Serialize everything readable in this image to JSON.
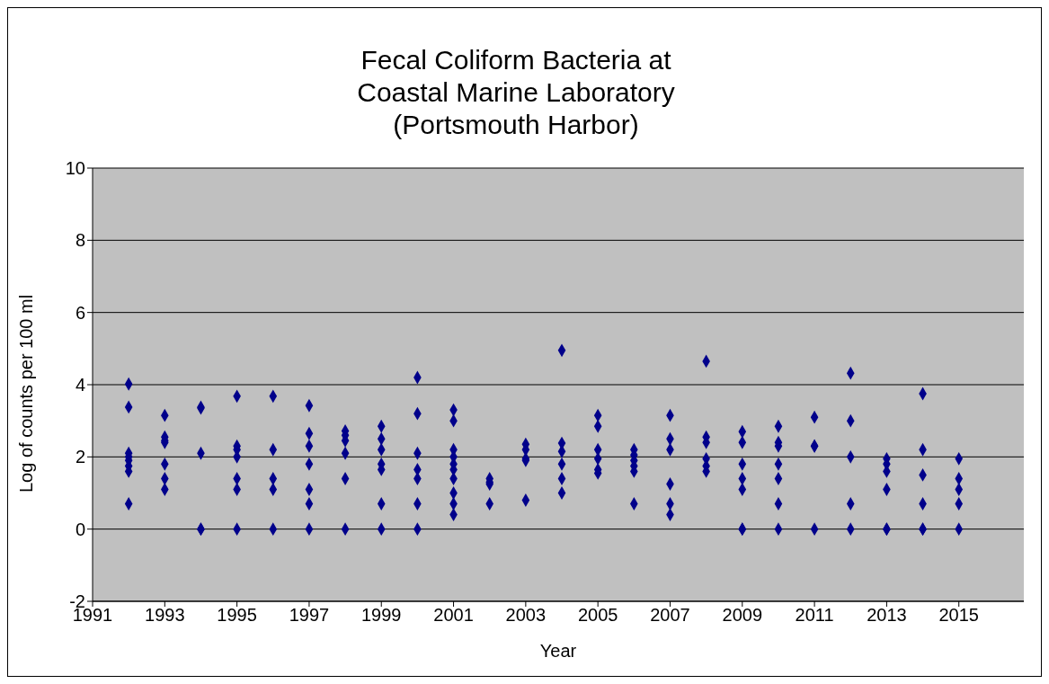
{
  "chart_data": {
    "type": "scatter",
    "title": "Fecal Coliform Bacteria at\nCoastal Marine Laboratory\n(Portsmouth Harbor)",
    "xlabel": "Year",
    "ylabel": "Log of counts per 100 ml",
    "xlim": [
      1991,
      2016.8
    ],
    "xticks": [
      1991,
      1993,
      1995,
      1997,
      1999,
      2001,
      2003,
      2005,
      2007,
      2009,
      2011,
      2013,
      2015
    ],
    "ylim": [
      -2,
      10
    ],
    "yticks": [
      -2,
      0,
      2,
      4,
      6,
      8,
      10
    ],
    "grid": "y",
    "legend": false,
    "marker": "diamond",
    "series": [
      {
        "color": "#00008b",
        "x": [
          1992,
          1992,
          1992,
          1992,
          1992,
          1992,
          1992,
          1992,
          1993,
          1993,
          1993,
          1993,
          1993,
          1993,
          1993,
          1994,
          1994,
          1994,
          1994,
          1994,
          1995,
          1995,
          1995,
          1995,
          1995,
          1995,
          1995,
          1996,
          1996,
          1996,
          1996,
          1996,
          1997,
          1997,
          1997,
          1997,
          1997,
          1997,
          1997,
          1998,
          1998,
          1998,
          1998,
          1998,
          1998,
          1999,
          1999,
          1999,
          1999,
          1999,
          1999,
          1999,
          2000,
          2000,
          2000,
          2000,
          2000,
          2000,
          2000,
          2001,
          2001,
          2001,
          2001,
          2001,
          2001,
          2001,
          2001,
          2001,
          2001,
          2002,
          2002,
          2002,
          2002,
          2003,
          2003,
          2003,
          2003,
          2003,
          2004,
          2004,
          2004,
          2004,
          2004,
          2004,
          2005,
          2005,
          2005,
          2005,
          2005,
          2005,
          2006,
          2006,
          2006,
          2006,
          2006,
          2006,
          2007,
          2007,
          2007,
          2007,
          2007,
          2007,
          2008,
          2008,
          2008,
          2008,
          2008,
          2008,
          2009,
          2009,
          2009,
          2009,
          2009,
          2009,
          2009,
          2010,
          2010,
          2010,
          2010,
          2010,
          2010,
          2010,
          2011,
          2011,
          2011,
          2011,
          2012,
          2012,
          2012,
          2012,
          2012,
          2013,
          2013,
          2013,
          2013,
          2013,
          2013,
          2014,
          2014,
          2014,
          2014,
          2014,
          2014,
          2015,
          2015,
          2015,
          2015,
          2015
        ],
        "values": [
          4.02,
          3.38,
          2.1,
          2.0,
          1.9,
          1.75,
          1.6,
          0.7,
          3.15,
          2.55,
          2.45,
          2.4,
          1.8,
          1.4,
          1.1,
          3.38,
          3.35,
          2.1,
          0,
          0,
          3.68,
          2.3,
          2.2,
          2.0,
          1.4,
          1.1,
          0,
          3.68,
          2.2,
          1.4,
          1.1,
          0,
          3.42,
          2.65,
          2.3,
          1.8,
          1.1,
          0.7,
          0,
          2.72,
          2.6,
          2.45,
          2.1,
          1.4,
          0,
          2.85,
          2.5,
          2.2,
          1.8,
          1.65,
          0.7,
          0,
          4.2,
          3.2,
          2.1,
          1.65,
          1.4,
          0.7,
          0,
          3.3,
          3.0,
          2.2,
          2.0,
          1.8,
          1.65,
          1.4,
          1.0,
          0.7,
          0.4,
          1.4,
          1.3,
          1.25,
          0.7,
          2.35,
          2.2,
          1.95,
          1.9,
          0.8,
          4.95,
          2.38,
          2.15,
          1.8,
          1.4,
          1.0,
          3.15,
          2.85,
          2.2,
          1.95,
          1.65,
          1.55,
          2.2,
          2.05,
          1.9,
          1.75,
          1.6,
          0.7,
          3.15,
          2.5,
          2.2,
          1.25,
          0.7,
          0.4,
          4.65,
          2.55,
          2.4,
          1.95,
          1.75,
          1.6,
          2.7,
          2.4,
          1.8,
          1.4,
          1.1,
          0,
          0,
          2.85,
          2.4,
          2.3,
          1.8,
          1.4,
          0.7,
          0,
          3.1,
          2.3,
          2.3,
          0,
          4.32,
          3.0,
          2.0,
          0.7,
          0,
          1.95,
          1.8,
          1.6,
          1.1,
          0,
          0,
          3.75,
          2.2,
          1.5,
          0.7,
          0,
          0,
          1.95,
          1.4,
          1.1,
          0.7,
          0
        ]
      }
    ]
  }
}
